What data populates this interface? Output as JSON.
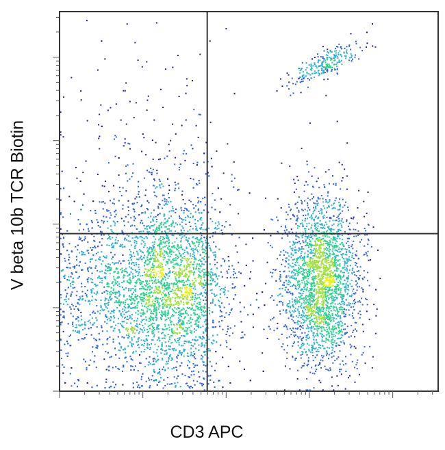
{
  "chart_data": {
    "type": "scatter",
    "subtype": "flow-cytometry density dot plot",
    "title": "",
    "xlabel": "CD3 APC",
    "ylabel": "V beta 10b TCR Biotin",
    "x_scale": "log (biexponential), no tick labels",
    "y_scale": "log (biexponential), no tick labels",
    "xlim": [
      0,
      1000
    ],
    "ylim": [
      0,
      1000
    ],
    "grid": false,
    "legend": "none",
    "quadrant_gates": {
      "x": 390,
      "y": 415
    },
    "populations": [
      {
        "quadrant": "lower-left",
        "center": [
          290,
          270
        ],
        "spread": [
          90,
          120
        ],
        "relative_density": "high"
      },
      {
        "quadrant": "lower-right",
        "center": [
          690,
          290
        ],
        "spread": [
          50,
          110
        ],
        "relative_density": "medium"
      },
      {
        "quadrant": "upper-right",
        "center": [
          700,
          860
        ],
        "spread": [
          45,
          30
        ],
        "relative_density": "low"
      },
      {
        "quadrant": "upper-left",
        "center": [
          250,
          550
        ],
        "spread": [
          120,
          180
        ],
        "relative_density": "very low"
      }
    ],
    "colormap": [
      "#2020a0",
      "#3060e0",
      "#30b0d0",
      "#30d090",
      "#a0e040",
      "#f0f020"
    ]
  }
}
